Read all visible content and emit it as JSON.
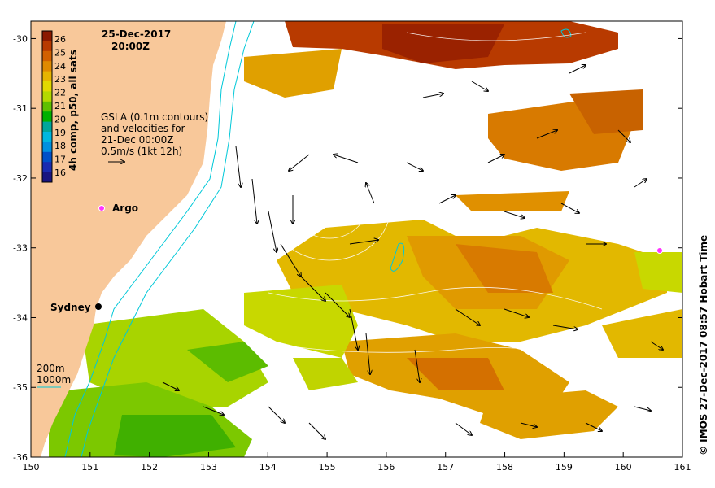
{
  "header": {
    "date": "25-Dec-2017",
    "time": "20:00Z"
  },
  "colorbar": {
    "label": "4h comp, p50, all sats",
    "ticks": [
      "26",
      "25",
      "24",
      "23",
      "22",
      "21",
      "20",
      "19",
      "18",
      "17",
      "16"
    ],
    "colors": [
      "#8b1a00",
      "#b83a00",
      "#d26000",
      "#e08a00",
      "#e6b400",
      "#e2d800",
      "#b4d800",
      "#5fc000",
      "#00b000",
      "#00a69c",
      "#00b7e0",
      "#0090e0",
      "#0050c8",
      "#1a2bb0",
      "#1a1580"
    ]
  },
  "legend": {
    "line1": "GSLA (0.1m contours)",
    "line2": "and velocities for",
    "line3": "21-Dec 00:00Z",
    "line4": "0.5m/s (1kt 12h)"
  },
  "depth_legend": {
    "shallow": "200m",
    "deep": "1000m"
  },
  "labels": {
    "argo": "Argo",
    "city": "Sydney"
  },
  "x_axis": {
    "ticks": [
      "150",
      "151",
      "152",
      "153",
      "154",
      "155",
      "156",
      "157",
      "158",
      "159",
      "160",
      "161"
    ],
    "range": [
      150,
      161
    ]
  },
  "y_axis": {
    "ticks": [
      "-30",
      "-31",
      "-32",
      "-33",
      "-34",
      "-35",
      "-36"
    ],
    "range": [
      -36,
      -29.75
    ]
  },
  "credit": "© IMOS 27-Dec-2017 08:57 Hobart Time",
  "colors": {
    "land": "#f8c89a",
    "argo": "#ff33ff",
    "isobath": "#00c8d8"
  }
}
